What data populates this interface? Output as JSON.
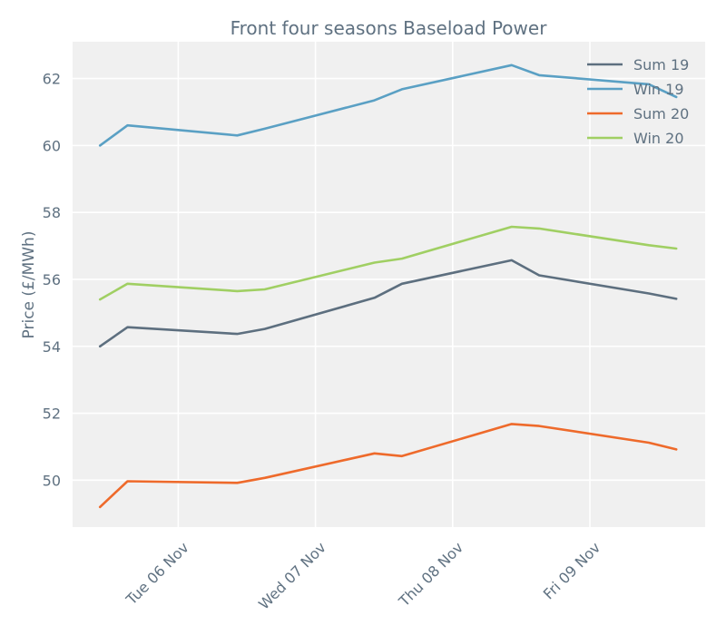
{
  "chart_data": {
    "type": "line",
    "title": "Front four seasons Baseload Power",
    "xlabel": "",
    "ylabel": "Price (£/MWh)",
    "x": [
      0,
      0.2,
      1.0,
      1.2,
      2.0,
      2.2,
      3.0,
      3.2,
      4.0,
      4.2
    ],
    "x_ticks": [
      {
        "pos": 0.57,
        "label": "Tue 06 Nov"
      },
      {
        "pos": 1.57,
        "label": "Wed 07 Nov"
      },
      {
        "pos": 2.57,
        "label": "Thu 08 Nov"
      },
      {
        "pos": 3.57,
        "label": "Fri 09 Nov"
      }
    ],
    "xlim": [
      -0.2,
      4.41
    ],
    "ylim": [
      48.6,
      63.1
    ],
    "yticks": [
      50,
      52,
      54,
      56,
      58,
      60,
      62
    ],
    "grid": true,
    "legend_position": "top-right",
    "series": [
      {
        "name": "Sum 19",
        "color": "#5d6f7f",
        "values": [
          54.0,
          54.57,
          54.37,
          54.52,
          55.45,
          55.87,
          56.57,
          56.12,
          55.58,
          55.42
        ]
      },
      {
        "name": "Win 19",
        "color": "#5aa0c4",
        "values": [
          60.0,
          60.6,
          60.3,
          60.5,
          61.35,
          61.68,
          62.4,
          62.1,
          61.83,
          61.45
        ]
      },
      {
        "name": "Sum 20",
        "color": "#ee6a2b",
        "values": [
          49.2,
          49.97,
          49.92,
          50.07,
          50.8,
          50.72,
          51.68,
          51.62,
          51.12,
          50.92
        ]
      },
      {
        "name": "Win 20",
        "color": "#a0cf63",
        "values": [
          55.4,
          55.87,
          55.65,
          55.7,
          56.5,
          56.62,
          57.57,
          57.52,
          57.02,
          56.92
        ]
      }
    ]
  }
}
